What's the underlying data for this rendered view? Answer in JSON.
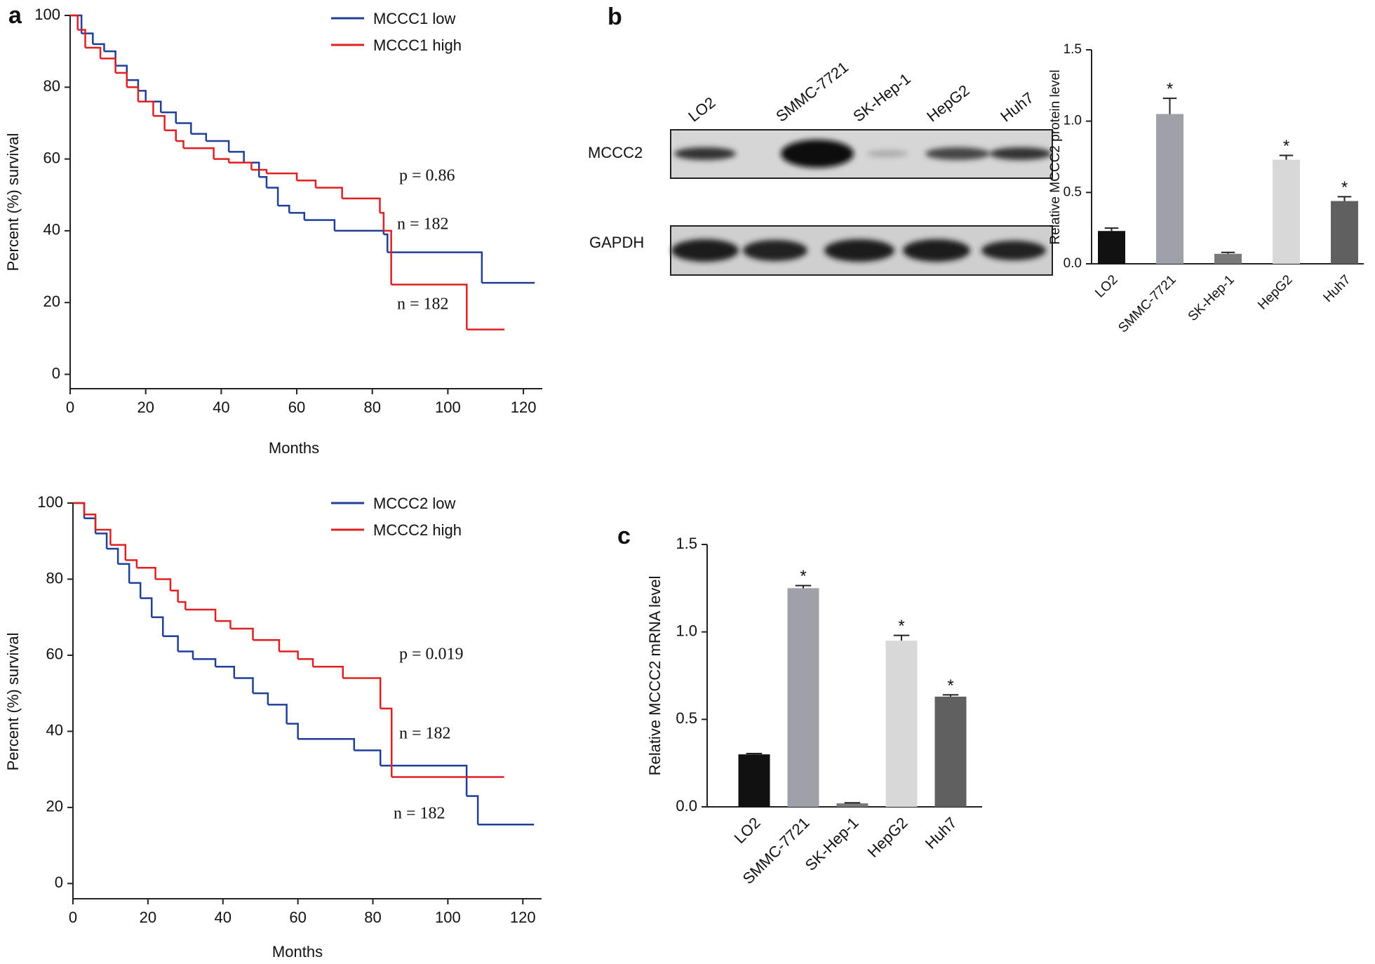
{
  "panels": [
    "a",
    "b",
    "c"
  ],
  "blot": {
    "lanes": [
      "LO2",
      "SMMC-7721",
      "SK-Hep-1",
      "HepG2",
      "Huh7"
    ],
    "rows": [
      "MCCC2",
      "GAPDH"
    ]
  },
  "chart_data": [
    {
      "type": "km",
      "xlabel": "Months",
      "ylabel": "Percent (%) survival",
      "xlim": [
        0,
        125
      ],
      "ylim": [
        -4,
        100
      ],
      "xticks": [
        0,
        20,
        40,
        60,
        80,
        100,
        120
      ],
      "yticks": [
        0,
        20,
        40,
        60,
        80,
        100
      ],
      "annotations": [
        "p = 0.86",
        "n = 182",
        "n = 182"
      ],
      "series": [
        {
          "name": "MCCC1 low",
          "color": "#1f3f99",
          "x": [
            0,
            3,
            6,
            9,
            12,
            15,
            18,
            20,
            24,
            28,
            32,
            36,
            42,
            46,
            50,
            52,
            55,
            58,
            62,
            70,
            83,
            84,
            109,
            123
          ],
          "values": [
            100,
            95,
            92,
            90,
            86,
            82,
            79,
            76,
            73,
            70,
            67,
            65,
            62,
            59,
            55,
            52,
            47,
            45,
            43,
            40,
            39,
            34,
            25.5,
            25.5
          ]
        },
        {
          "name": "MCCC1 high",
          "color": "#e02020",
          "x": [
            0,
            2,
            4,
            8,
            12,
            15,
            18,
            22,
            25,
            28,
            30,
            38,
            42,
            48,
            52,
            60,
            65,
            72,
            82,
            83,
            85,
            105,
            115
          ],
          "values": [
            100,
            96,
            91,
            88,
            84,
            80,
            76,
            72,
            68,
            65,
            63,
            60,
            59,
            57,
            56,
            54,
            52,
            49,
            45,
            40,
            25,
            12.5,
            12.5
          ]
        }
      ]
    },
    {
      "type": "km",
      "xlabel": "Months",
      "ylabel": "Percent (%) survival",
      "xlim": [
        0,
        125
      ],
      "ylim": [
        -4,
        100
      ],
      "xticks": [
        0,
        20,
        40,
        60,
        80,
        100,
        120
      ],
      "yticks": [
        0,
        20,
        40,
        60,
        80,
        100
      ],
      "annotations": [
        "p = 0.019",
        "n = 182",
        "n = 182"
      ],
      "series": [
        {
          "name": "MCCC2 low",
          "color": "#1f3f99",
          "x": [
            0,
            3,
            6,
            9,
            12,
            15,
            18,
            21,
            24,
            28,
            32,
            38,
            43,
            48,
            52,
            57,
            60,
            75,
            82,
            105,
            108,
            123
          ],
          "values": [
            100,
            96,
            92,
            88,
            84,
            79,
            75,
            70,
            65,
            61,
            59,
            57,
            54,
            50,
            47,
            42,
            38,
            35,
            31,
            23,
            15.5,
            15.5
          ]
        },
        {
          "name": "MCCC2 high",
          "color": "#e02020",
          "x": [
            0,
            3,
            6,
            10,
            14,
            17,
            22,
            26,
            28,
            30,
            38,
            42,
            48,
            55,
            60,
            64,
            72,
            82,
            85,
            115
          ],
          "values": [
            100,
            97,
            93,
            89,
            85,
            83,
            80,
            77,
            74,
            72,
            69,
            67,
            64,
            61,
            59,
            57,
            54,
            46,
            28,
            28
          ]
        }
      ]
    },
    {
      "type": "bar",
      "ylabel": "Relative MCCC2 protein level",
      "categories": [
        "LO2",
        "SMMC-7721",
        "SK-Hep-1",
        "HepG2",
        "Huh7"
      ],
      "values": [
        0.23,
        1.05,
        0.07,
        0.73,
        0.44
      ],
      "errors": [
        0.02,
        0.11,
        0.01,
        0.03,
        0.03
      ],
      "colors": [
        "#111111",
        "#a0a0a8",
        "#7a7a7a",
        "#d8d8d8",
        "#606060"
      ],
      "significance": [
        null,
        "*",
        null,
        "*",
        "*"
      ],
      "ylim": [
        0,
        1.5
      ],
      "yticks": [
        {
          "value": 0,
          "label": "0.0"
        },
        {
          "value": 0.5,
          "label": "0.5"
        },
        {
          "value": 1,
          "label": "1.0"
        },
        {
          "value": 1.5,
          "label": "1.5"
        }
      ]
    },
    {
      "type": "bar",
      "ylabel": "Relative MCCC2 mRNA level",
      "categories": [
        "LO2",
        "SMMC-7721",
        "SK-Hep-1",
        "HepG2",
        "Huh7"
      ],
      "values": [
        0.3,
        1.25,
        0.02,
        0.95,
        0.63
      ],
      "errors": [
        0.005,
        0.015,
        0.003,
        0.03,
        0.01
      ],
      "colors": [
        "#111111",
        "#a0a0a8",
        "#7a7a7a",
        "#d8d8d8",
        "#606060"
      ],
      "significance": [
        null,
        "*",
        null,
        "*",
        "*"
      ],
      "ylim": [
        0,
        1.5
      ],
      "yticks": [
        {
          "value": 0,
          "label": "0.0"
        },
        {
          "value": 0.5,
          "label": "0.5"
        },
        {
          "value": 1,
          "label": "1.0"
        },
        {
          "value": 1.5,
          "label": "1.5"
        }
      ]
    }
  ]
}
